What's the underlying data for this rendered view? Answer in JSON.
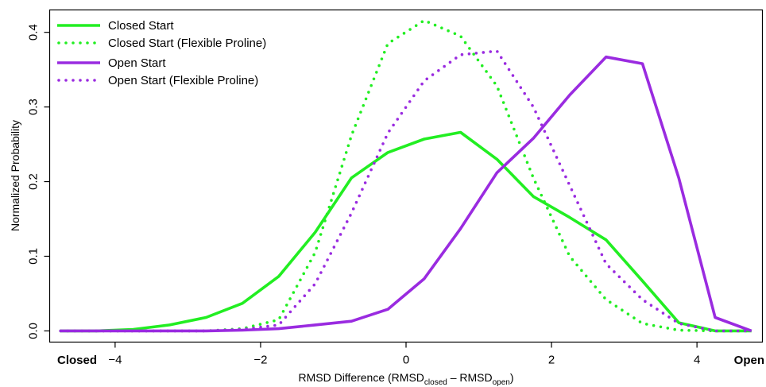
{
  "chart_data": {
    "type": "line",
    "xlabel": {
      "main": "RMSD Difference (RMSD",
      "sub1": "closed",
      "mid": " – RMSD",
      "sub2": "open",
      "end": ")"
    },
    "ylabel": "Normalized Probability",
    "xlim": [
      -4.9,
      4.9
    ],
    "ylim": [
      -0.015,
      0.43
    ],
    "x_ticks": [
      -4,
      -2,
      0,
      2,
      4
    ],
    "x_tick_labels": [
      "−4",
      "−2",
      "0",
      "2",
      "4"
    ],
    "y_ticks": [
      0.0,
      0.1,
      0.2,
      0.3,
      0.4
    ],
    "y_tick_labels": [
      "0.0",
      "0.1",
      "0.2",
      "0.3",
      "0.4"
    ],
    "x_end_labels": {
      "left": "Closed",
      "right": "Open"
    },
    "legend_position": "top-left",
    "grid": false,
    "series": [
      {
        "name": "Closed Start",
        "color": "#22ee22",
        "style": "solid",
        "x": [
          -4.75,
          -4.25,
          -3.75,
          -3.25,
          -2.75,
          -2.25,
          -1.75,
          -1.25,
          -0.75,
          -0.25,
          0.25,
          0.75,
          1.25,
          1.75,
          2.25,
          2.75,
          3.25,
          3.75,
          4.25,
          4.75
        ],
        "y": [
          0.0,
          0.0,
          0.002,
          0.008,
          0.018,
          0.037,
          0.073,
          0.132,
          0.205,
          0.239,
          0.257,
          0.266,
          0.23,
          0.18,
          0.152,
          0.122,
          0.067,
          0.011,
          0.0,
          0.0
        ]
      },
      {
        "name": "Closed Start (Flexible Proline)",
        "color": "#22ee22",
        "style": "dotted",
        "x": [
          -4.75,
          -4.25,
          -3.75,
          -3.25,
          -2.75,
          -2.25,
          -1.75,
          -1.25,
          -0.75,
          -0.25,
          0.25,
          0.75,
          1.25,
          1.75,
          2.25,
          2.75,
          3.25,
          3.75,
          4.25,
          4.75
        ],
        "y": [
          0.0,
          0.0,
          0.0,
          0.0,
          0.0,
          0.003,
          0.015,
          0.105,
          0.262,
          0.385,
          0.416,
          0.395,
          0.328,
          0.205,
          0.1,
          0.042,
          0.01,
          0.001,
          0.0,
          0.0
        ]
      },
      {
        "name": "Open Start",
        "color": "#9a2be0",
        "style": "solid",
        "x": [
          -4.75,
          -4.25,
          -3.75,
          -3.25,
          -2.75,
          -2.25,
          -1.75,
          -1.25,
          -0.75,
          -0.25,
          0.25,
          0.75,
          1.25,
          1.75,
          2.25,
          2.75,
          3.25,
          3.75,
          4.25,
          4.75
        ],
        "y": [
          0.0,
          0.0,
          0.0,
          0.0,
          0.0,
          0.001,
          0.003,
          0.008,
          0.013,
          0.029,
          0.07,
          0.137,
          0.212,
          0.258,
          0.316,
          0.367,
          0.358,
          0.205,
          0.018,
          0.0
        ]
      },
      {
        "name": "Open Start (Flexible Proline)",
        "color": "#9a2be0",
        "style": "dotted",
        "x": [
          -4.75,
          -4.25,
          -3.75,
          -3.25,
          -2.75,
          -2.25,
          -1.75,
          -1.25,
          -0.75,
          -0.25,
          0.25,
          0.75,
          1.25,
          1.75,
          2.25,
          2.75,
          3.25,
          3.75,
          4.25,
          4.75
        ],
        "y": [
          0.0,
          0.0,
          0.0,
          0.0,
          0.0,
          0.002,
          0.008,
          0.063,
          0.158,
          0.265,
          0.335,
          0.37,
          0.375,
          0.3,
          0.195,
          0.09,
          0.042,
          0.01,
          0.0,
          0.0
        ]
      }
    ]
  }
}
